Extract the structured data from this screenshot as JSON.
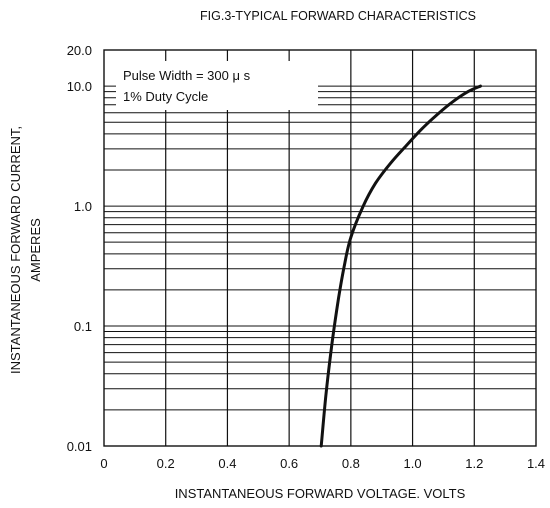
{
  "chart_data": {
    "type": "line",
    "title": "FIG.3-TYPICAL FORWARD CHARACTERISTICS",
    "xlabel": "INSTANTANEOUS FORWARD VOLTAGE. VOLTS",
    "ylabel_lines": [
      "INSTANTANEOUS FORWARD CURRENT,",
      "AMPERES"
    ],
    "x_ticks": [
      "0",
      "0.2",
      "0.4",
      "0.6",
      "0.8",
      "1.0",
      "1.2",
      "1.4"
    ],
    "y_ticks": [
      "0.01",
      "0.1",
      "1.0",
      "10.0",
      "20.0"
    ],
    "xlim": [
      0,
      1.4
    ],
    "ylim": [
      0.01,
      20
    ],
    "y_scale": "log",
    "grid": true,
    "annotation": [
      "Pulse Width = 300 μ s",
      "1% Duty Cycle"
    ],
    "series": [
      {
        "x": [
          0.704,
          0.72,
          0.74,
          0.76,
          0.78,
          0.8,
          0.84,
          0.88,
          0.93,
          0.98,
          1.03,
          1.08,
          1.13,
          1.18,
          1.22
        ],
        "y": [
          0.01,
          0.028,
          0.075,
          0.17,
          0.33,
          0.55,
          1.0,
          1.55,
          2.3,
          3.2,
          4.4,
          5.8,
          7.4,
          9.0,
          10.0
        ]
      }
    ],
    "colors": {
      "line": "#111111",
      "grid": "#111111",
      "background": "#ffffff"
    }
  }
}
